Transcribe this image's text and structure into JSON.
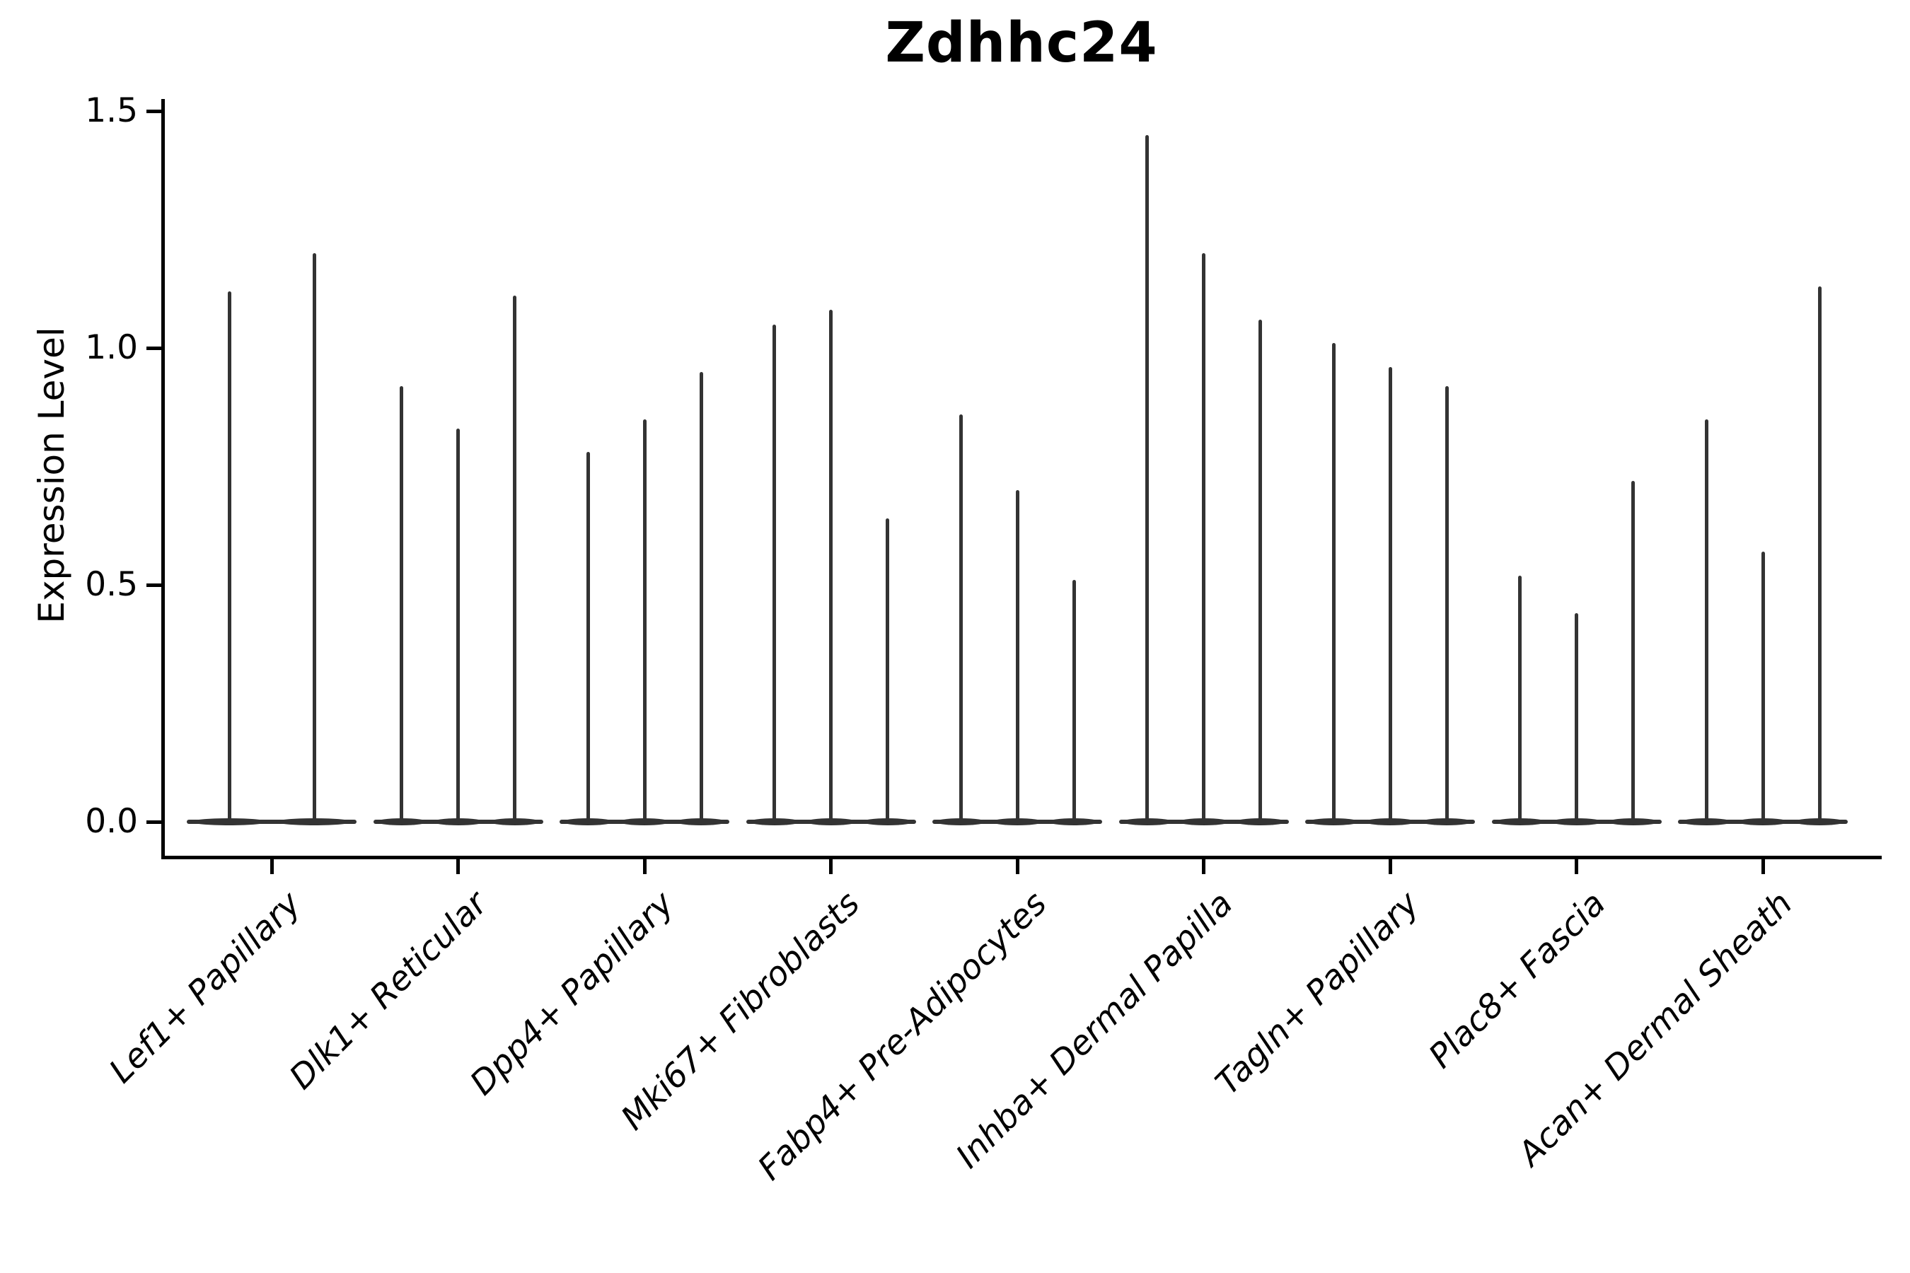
{
  "chart_data": {
    "type": "violin",
    "title": "Zdhhc24",
    "xlabel": "",
    "ylabel": "Expression Level",
    "ytick_labels": [
      "0.0",
      "0.5",
      "1.0",
      "1.5"
    ],
    "ytick_values": [
      0.0,
      0.5,
      1.0,
      1.5
    ],
    "ylim": [
      -0.07,
      1.53
    ],
    "grid": false,
    "legend": "none",
    "violin_color": "#333333",
    "axis_color": "#000000",
    "background_color": "#ffffff",
    "description": "Thin spike-shaped violins (expression level distributions) rising from a flat zero baseline; 2-3 violins per cell-type group",
    "groups": [
      {
        "label": "Lef1+ Papillary",
        "violin_maxima": [
          1.12,
          1.2
        ]
      },
      {
        "label": "Dlk1+ Reticular",
        "violin_maxima": [
          0.92,
          0.83,
          1.11
        ]
      },
      {
        "label": "Dpp4+ Papillary",
        "violin_maxima": [
          0.78,
          0.85,
          0.95
        ]
      },
      {
        "label": "Mki67+ Fibroblasts",
        "violin_maxima": [
          1.05,
          1.08,
          0.64
        ]
      },
      {
        "label": "Fabp4+ Pre-Adipocytes",
        "violin_maxima": [
          0.86,
          0.7,
          0.51
        ]
      },
      {
        "label": "Inhba+ Dermal Papilla",
        "violin_maxima": [
          1.45,
          1.2,
          1.06
        ]
      },
      {
        "label": "Tagln+ Papillary",
        "violin_maxima": [
          1.01,
          0.96,
          0.92
        ]
      },
      {
        "label": "Plac8+ Fascia",
        "violin_maxima": [
          0.52,
          0.44,
          0.72
        ]
      },
      {
        "label": "Acan+ Dermal Sheath",
        "violin_maxima": [
          0.85,
          0.57,
          1.13
        ]
      }
    ]
  }
}
